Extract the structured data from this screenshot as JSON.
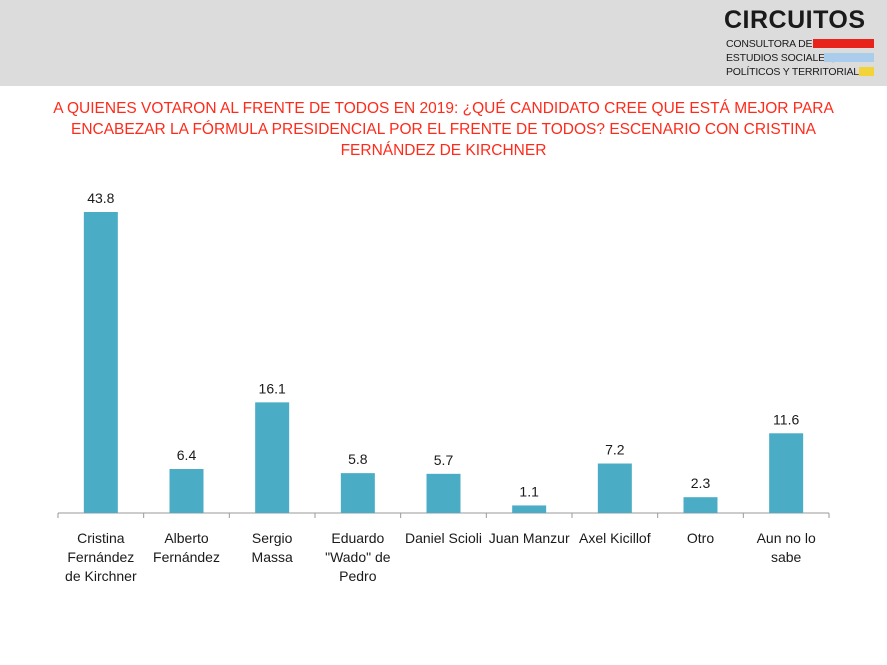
{
  "header": {
    "logo": {
      "name": "CIRCUITOS",
      "line1": "CONSULTORA DE",
      "line2": "ESTUDIOS SOCIALES,",
      "line3": "POLÍTICOS Y TERRITORIALES",
      "colors": {
        "red": "#e8231c",
        "blue": "#a9cdea",
        "yellow": "#f2d338"
      }
    }
  },
  "colors": {
    "bar": "#4bacc6",
    "title": "#ff2a1a",
    "axis": "#9a9a9a"
  },
  "chart_data": {
    "type": "bar",
    "title": "A QUIENES VOTARON AL FRENTE DE TODOS EN 2019: ¿QUÉ CANDIDATO CREE QUE ESTÁ MEJOR PARA ENCABEZAR LA FÓRMULA PRESIDENCIAL POR EL FRENTE DE TODOS? ESCENARIO CON CRISTINA FERNÁNDEZ DE KIRCHNER",
    "categories": [
      [
        "Cristina",
        "Fernández",
        "de Kirchner"
      ],
      [
        "Alberto",
        "Fernández"
      ],
      [
        "Sergio",
        "Massa"
      ],
      [
        "Eduardo",
        "\"Wado\" de",
        "Pedro"
      ],
      [
        "Daniel Scioli"
      ],
      [
        "Juan Manzur"
      ],
      [
        "Axel Kicillof"
      ],
      [
        "Otro"
      ],
      [
        "Aun no lo",
        "sabe"
      ]
    ],
    "values": [
      43.8,
      6.4,
      16.1,
      5.8,
      5.7,
      1.1,
      7.2,
      2.3,
      11.6
    ],
    "value_labels": [
      "43.8",
      "6.4",
      "16.1",
      "5.8",
      "5.7",
      "1.1",
      "7.2",
      "2.3",
      "11.6"
    ],
    "ylim": [
      0,
      43.8
    ],
    "grid": false,
    "legend": "none"
  }
}
